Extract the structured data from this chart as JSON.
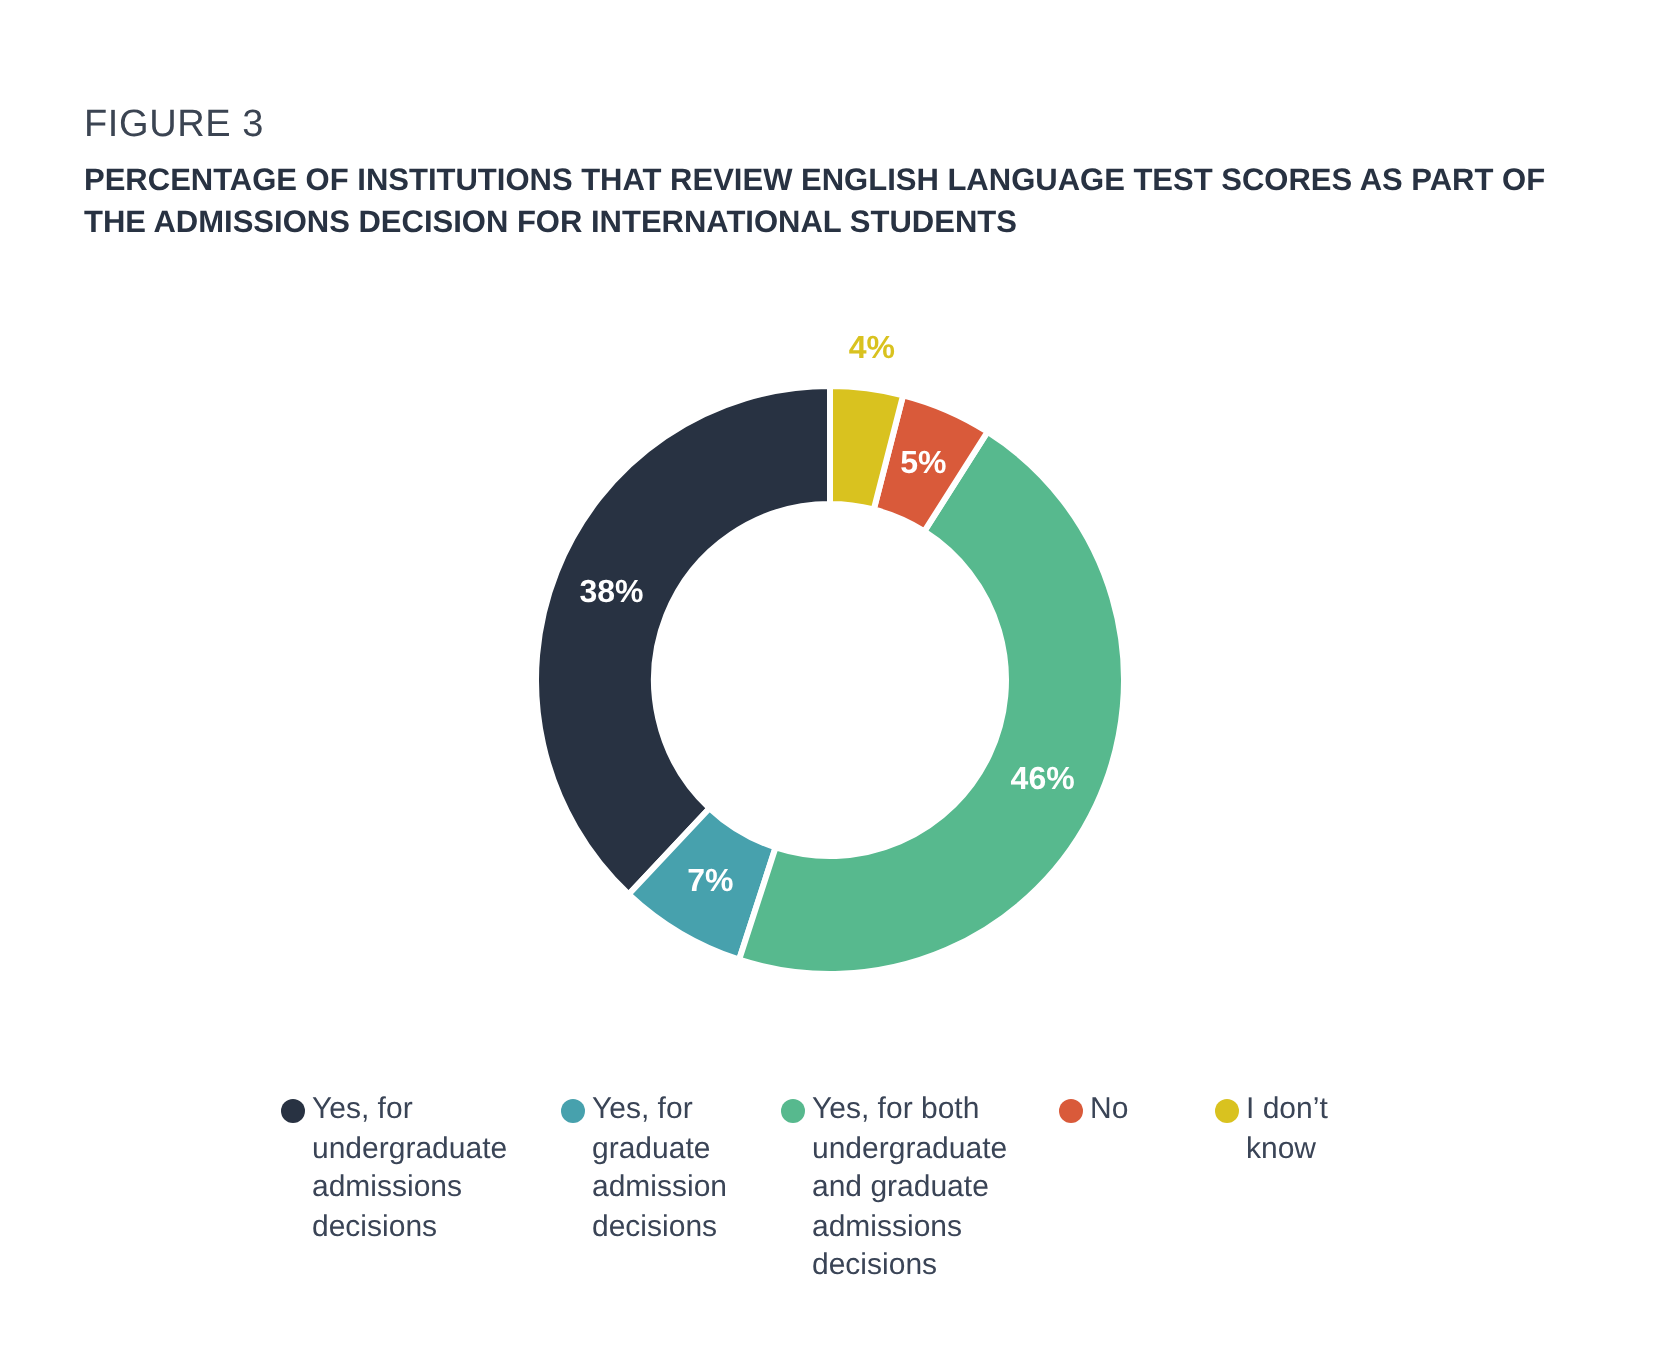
{
  "chart_data": {
    "type": "donut",
    "title": "PERCENTAGE OF INSTITUTIONS THAT REVIEW ENGLISH LANGUAGE TEST SCORES AS PART OF THE ADMISSIONS DECISION FOR INTERNATIONAL STUDENTS",
    "annotations": [
      "FIGURE 3"
    ],
    "categories": [
      "Yes, for undergraduate admissions decisions",
      "Yes, for graduate admission decisions",
      "Yes, for both undergraduate and graduate admissions decisions",
      "No",
      "I don’t know"
    ],
    "values": [
      38,
      7,
      46,
      5,
      4
    ],
    "colors": [
      "#283242",
      "#47a1ad",
      "#57b98e",
      "#d95a3a",
      "#d9c21f"
    ],
    "value_labels": [
      "38%",
      "7%",
      "46%",
      "5%",
      "4%"
    ],
    "legend": "bottom"
  }
}
